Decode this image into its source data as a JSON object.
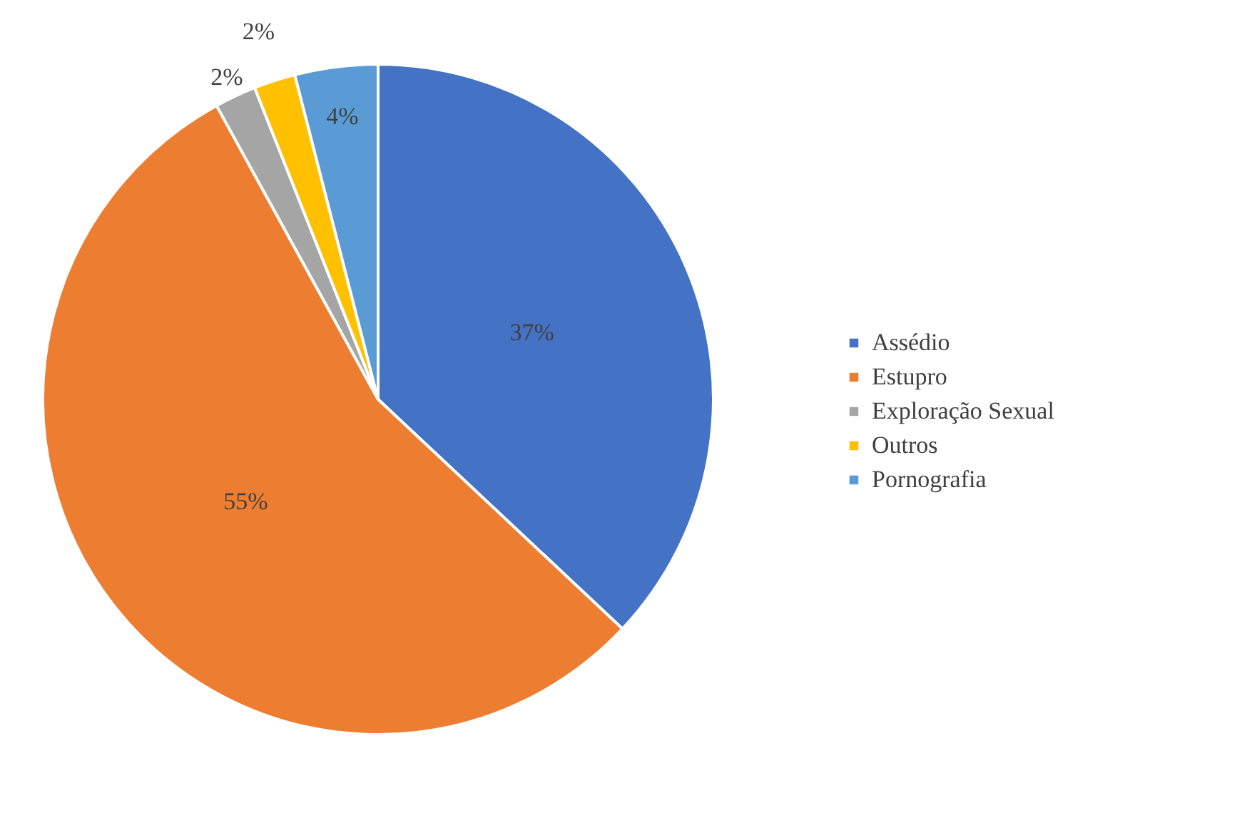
{
  "chart_data": {
    "type": "pie",
    "categories": [
      "Assédio",
      "Estupro",
      "Exploração Sexual",
      "Outros",
      "Pornografia"
    ],
    "values": [
      37,
      55,
      2,
      2,
      4
    ],
    "colors": [
      "#4472c4",
      "#ed7d31",
      "#a5a5a5",
      "#ffc000",
      "#5b9bd5"
    ],
    "value_labels": [
      "37%",
      "55%",
      "2%",
      "2%",
      "4%"
    ],
    "legend": "right"
  }
}
